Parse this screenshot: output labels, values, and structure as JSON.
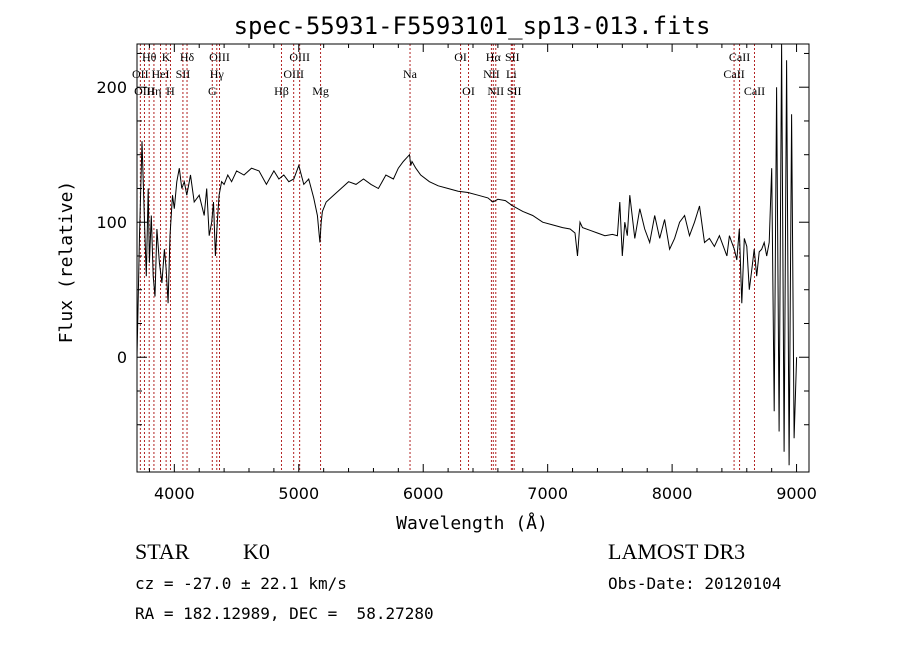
{
  "chart_data": {
    "type": "line",
    "title": "spec-55931-F5593101_sp13-013.fits",
    "xlabel": "Wavelength (Å)",
    "ylabel": "Flux (relative)",
    "xlim": [
      3700,
      9100
    ],
    "ylim": [
      -85,
      232
    ],
    "x_ticks": [
      4000,
      5000,
      6000,
      7000,
      8000,
      9000
    ],
    "y_ticks": [
      0,
      100,
      200
    ],
    "grid": false,
    "line_color": "#000000",
    "marker_color": "#b22222",
    "lines": [
      {
        "label": "Hθ",
        "x": 3798,
        "row": 0
      },
      {
        "label": "OII",
        "x": 3727,
        "row": 1
      },
      {
        "label": "OIII",
        "x": 3760,
        "row": 2
      },
      {
        "label": "Hη",
        "x": 3836,
        "row": 2
      },
      {
        "label": "HeI",
        "x": 3889,
        "row": 1
      },
      {
        "label": "K",
        "x": 3934,
        "row": 0
      },
      {
        "label": "H",
        "x": 3969,
        "row": 2
      },
      {
        "label": "SII",
        "x": 4069,
        "row": 1
      },
      {
        "label": "Hδ",
        "x": 4102,
        "row": 0
      },
      {
        "label": "G",
        "x": 4305,
        "row": 2
      },
      {
        "label": "Hγ",
        "x": 4341,
        "row": 1
      },
      {
        "label": "OIII",
        "x": 4363,
        "row": 0
      },
      {
        "label": "Hβ",
        "x": 4861,
        "row": 2
      },
      {
        "label": "OIII",
        "x": 4959,
        "row": 1
      },
      {
        "label": "OIII",
        "x": 5007,
        "row": 0
      },
      {
        "label": "Mg",
        "x": 5175,
        "row": 2
      },
      {
        "label": "Na",
        "x": 5894,
        "row": 1
      },
      {
        "label": "OI",
        "x": 6300,
        "row": 0
      },
      {
        "label": "OI",
        "x": 6364,
        "row": 2
      },
      {
        "label": "NII",
        "x": 6548,
        "row": 1
      },
      {
        "label": "Hα",
        "x": 6563,
        "row": 0
      },
      {
        "label": "NII",
        "x": 6583,
        "row": 2
      },
      {
        "label": "Li",
        "x": 6708,
        "row": 1
      },
      {
        "label": "SII",
        "x": 6716,
        "row": 0
      },
      {
        "label": "SII",
        "x": 6731,
        "row": 2
      },
      {
        "label": "CaII",
        "x": 8498,
        "row": 1
      },
      {
        "label": "CaII",
        "x": 8542,
        "row": 0
      },
      {
        "label": "CaII",
        "x": 8662,
        "row": 2
      }
    ],
    "series": [
      {
        "x": [
          3700,
          3720,
          3740,
          3760,
          3775,
          3790,
          3800,
          3815,
          3830,
          3845,
          3860,
          3880,
          3900,
          3920,
          3935,
          3950,
          3965,
          3985,
          4000,
          4020,
          4040,
          4060,
          4080,
          4100,
          4130,
          4160,
          4200,
          4240,
          4260,
          4280,
          4300,
          4315,
          4330,
          4345,
          4360,
          4380,
          4400,
          4430,
          4460,
          4500,
          4560,
          4620,
          4680,
          4740,
          4800,
          4840,
          4880,
          4920,
          4960,
          5000,
          5040,
          5080,
          5120,
          5150,
          5170,
          5180,
          5190,
          5220,
          5280,
          5340,
          5400,
          5460,
          5520,
          5580,
          5640,
          5700,
          5760,
          5800,
          5840,
          5870,
          5890,
          5900,
          5910,
          5940,
          5980,
          6050,
          6120,
          6200,
          6280,
          6360,
          6440,
          6520,
          6560,
          6600,
          6660,
          6720,
          6800,
          6880,
          6960,
          7040,
          7120,
          7180,
          7220,
          7240,
          7260,
          7280,
          7340,
          7400,
          7460,
          7520,
          7560,
          7580,
          7600,
          7620,
          7640,
          7660,
          7700,
          7740,
          7780,
          7820,
          7860,
          7900,
          7940,
          7980,
          8020,
          8060,
          8100,
          8140,
          8180,
          8220,
          8260,
          8300,
          8340,
          8380,
          8420,
          8440,
          8460,
          8480,
          8500,
          8520,
          8540,
          8560,
          8580,
          8600,
          8620,
          8640,
          8660,
          8680,
          8700,
          8720,
          8740,
          8760,
          8780,
          8800,
          8820,
          8840,
          8860,
          8880,
          8900,
          8920,
          8940,
          8960,
          8980,
          9000
        ],
        "values": [
          0,
          90,
          160,
          100,
          60,
          125,
          70,
          105,
          60,
          45,
          95,
          70,
          55,
          80,
          65,
          40,
          90,
          120,
          110,
          130,
          140,
          125,
          130,
          120,
          135,
          115,
          120,
          105,
          125,
          90,
          100,
          115,
          75,
          100,
          120,
          130,
          128,
          135,
          130,
          138,
          135,
          140,
          138,
          128,
          138,
          132,
          135,
          130,
          132,
          142,
          128,
          132,
          118,
          105,
          85,
          100,
          108,
          115,
          120,
          125,
          130,
          128,
          132,
          128,
          125,
          135,
          132,
          140,
          145,
          148,
          150,
          142,
          145,
          140,
          135,
          130,
          127,
          125,
          123,
          122,
          120,
          118,
          115,
          117,
          116,
          112,
          108,
          105,
          100,
          98,
          96,
          95,
          92,
          75,
          100,
          96,
          94,
          92,
          90,
          91,
          90,
          115,
          75,
          100,
          90,
          120,
          88,
          110,
          95,
          85,
          105,
          88,
          102,
          80,
          88,
          100,
          105,
          90,
          100,
          112,
          85,
          88,
          82,
          90,
          80,
          75,
          90,
          85,
          80,
          72,
          95,
          40,
          88,
          82,
          50,
          65,
          80,
          60,
          78,
          80,
          85,
          75,
          85,
          140,
          -40,
          200,
          -55,
          250,
          -70,
          220,
          -80,
          180,
          -60,
          0
        ]
      }
    ]
  },
  "footer": {
    "object_class": "STAR",
    "subclass": "K0",
    "redshift_line": "cz = -27.0 ± 22.1 km/s",
    "coords_line": "RA = 182.12989, DEC =  58.27280",
    "survey": "LAMOST DR3",
    "obs_date": "Obs-Date: 20120104"
  }
}
